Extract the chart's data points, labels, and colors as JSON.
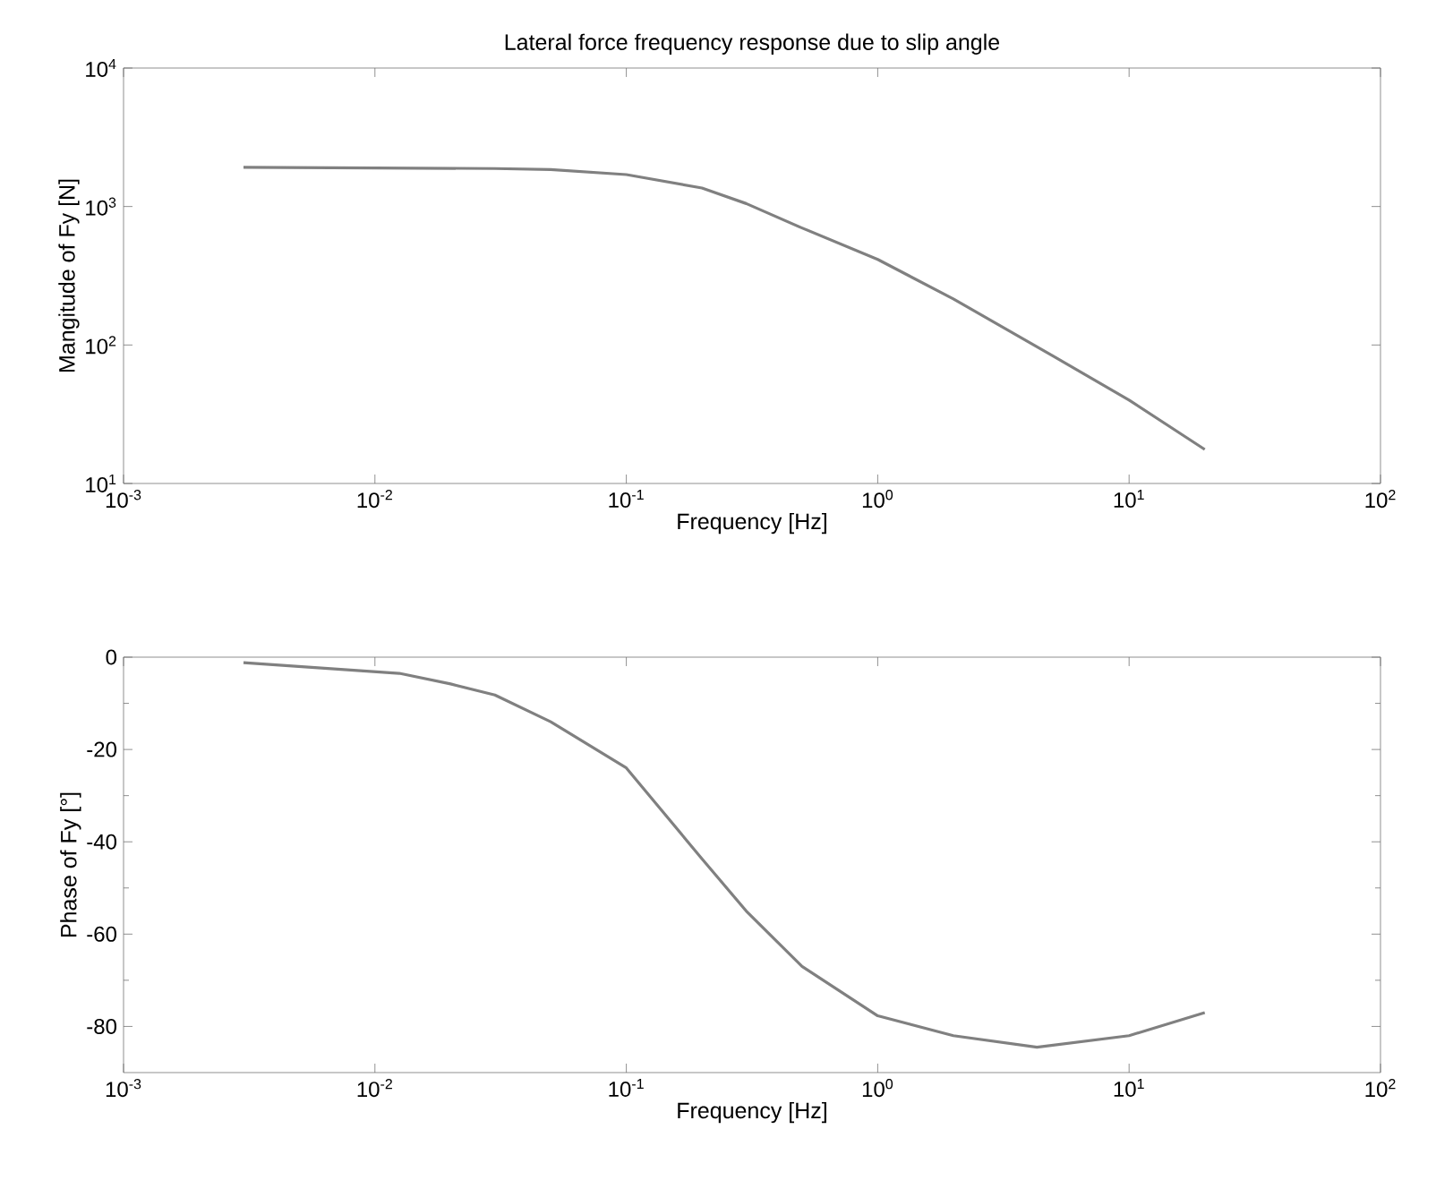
{
  "chart_data": [
    {
      "type": "line",
      "title": "Lateral force frequency response due to slip angle",
      "xlabel": "Frequency [Hz]",
      "ylabel": "Mangitude of Fy [N]",
      "log": "xy",
      "color": "#808080",
      "x": [
        0.003,
        0.01,
        0.03,
        0.05,
        0.1,
        0.2,
        0.3,
        0.5,
        1,
        2,
        5,
        10,
        20
      ],
      "values": [
        1920,
        1900,
        1880,
        1850,
        1700,
        1360,
        1050,
        700,
        415,
        215,
        83,
        40,
        17.6
      ],
      "xlim": [
        0.001,
        100
      ],
      "ylim": [
        10,
        10000
      ],
      "xticks": [
        {
          "value": 0.001,
          "label": "10$^{-3}$"
        },
        {
          "value": 0.01,
          "label": "10$^{-2}$"
        },
        {
          "value": 0.1,
          "label": "10$^{-1}$"
        },
        {
          "value": 1,
          "label": "10$^{0}$"
        },
        {
          "value": 10,
          "label": "10$^{1}$"
        },
        {
          "value": 100,
          "label": "10$^{2}$"
        }
      ],
      "yticks": [
        {
          "value": 10,
          "label": "10$^{1}$"
        },
        {
          "value": 100,
          "label": "10$^{2}$"
        },
        {
          "value": 1000,
          "label": "10$^{3}$"
        },
        {
          "value": 10000,
          "label": "10$^{4}$"
        }
      ]
    },
    {
      "type": "line",
      "xlabel": "Frequency [Hz]",
      "ylabel": "Phase of Fy [°]",
      "log": "x",
      "color": "#808080",
      "x": [
        0.003,
        0.0125,
        0.02,
        0.03,
        0.05,
        0.1,
        0.2,
        0.3,
        0.5,
        1,
        2,
        4.3,
        10,
        20
      ],
      "values": [
        -1.2,
        -3.5,
        -5.8,
        -8.2,
        -14,
        -24,
        -43.7,
        -55,
        -67,
        -77.7,
        -82,
        -84.5,
        -82,
        -77
      ],
      "xlim": [
        0.001,
        100
      ],
      "ylim": [
        -90,
        0
      ],
      "xticks": [
        {
          "value": 0.001,
          "label": "10$^{-3}$"
        },
        {
          "value": 0.01,
          "label": "10$^{-2}$"
        },
        {
          "value": 0.1,
          "label": "10$^{-1}$"
        },
        {
          "value": 1,
          "label": "10$^{0}$"
        },
        {
          "value": 10,
          "label": "10$^{1}$"
        },
        {
          "value": 100,
          "label": "10$^{2}$"
        }
      ],
      "yticks": [
        -80,
        -60,
        -40,
        -20,
        0
      ]
    }
  ]
}
